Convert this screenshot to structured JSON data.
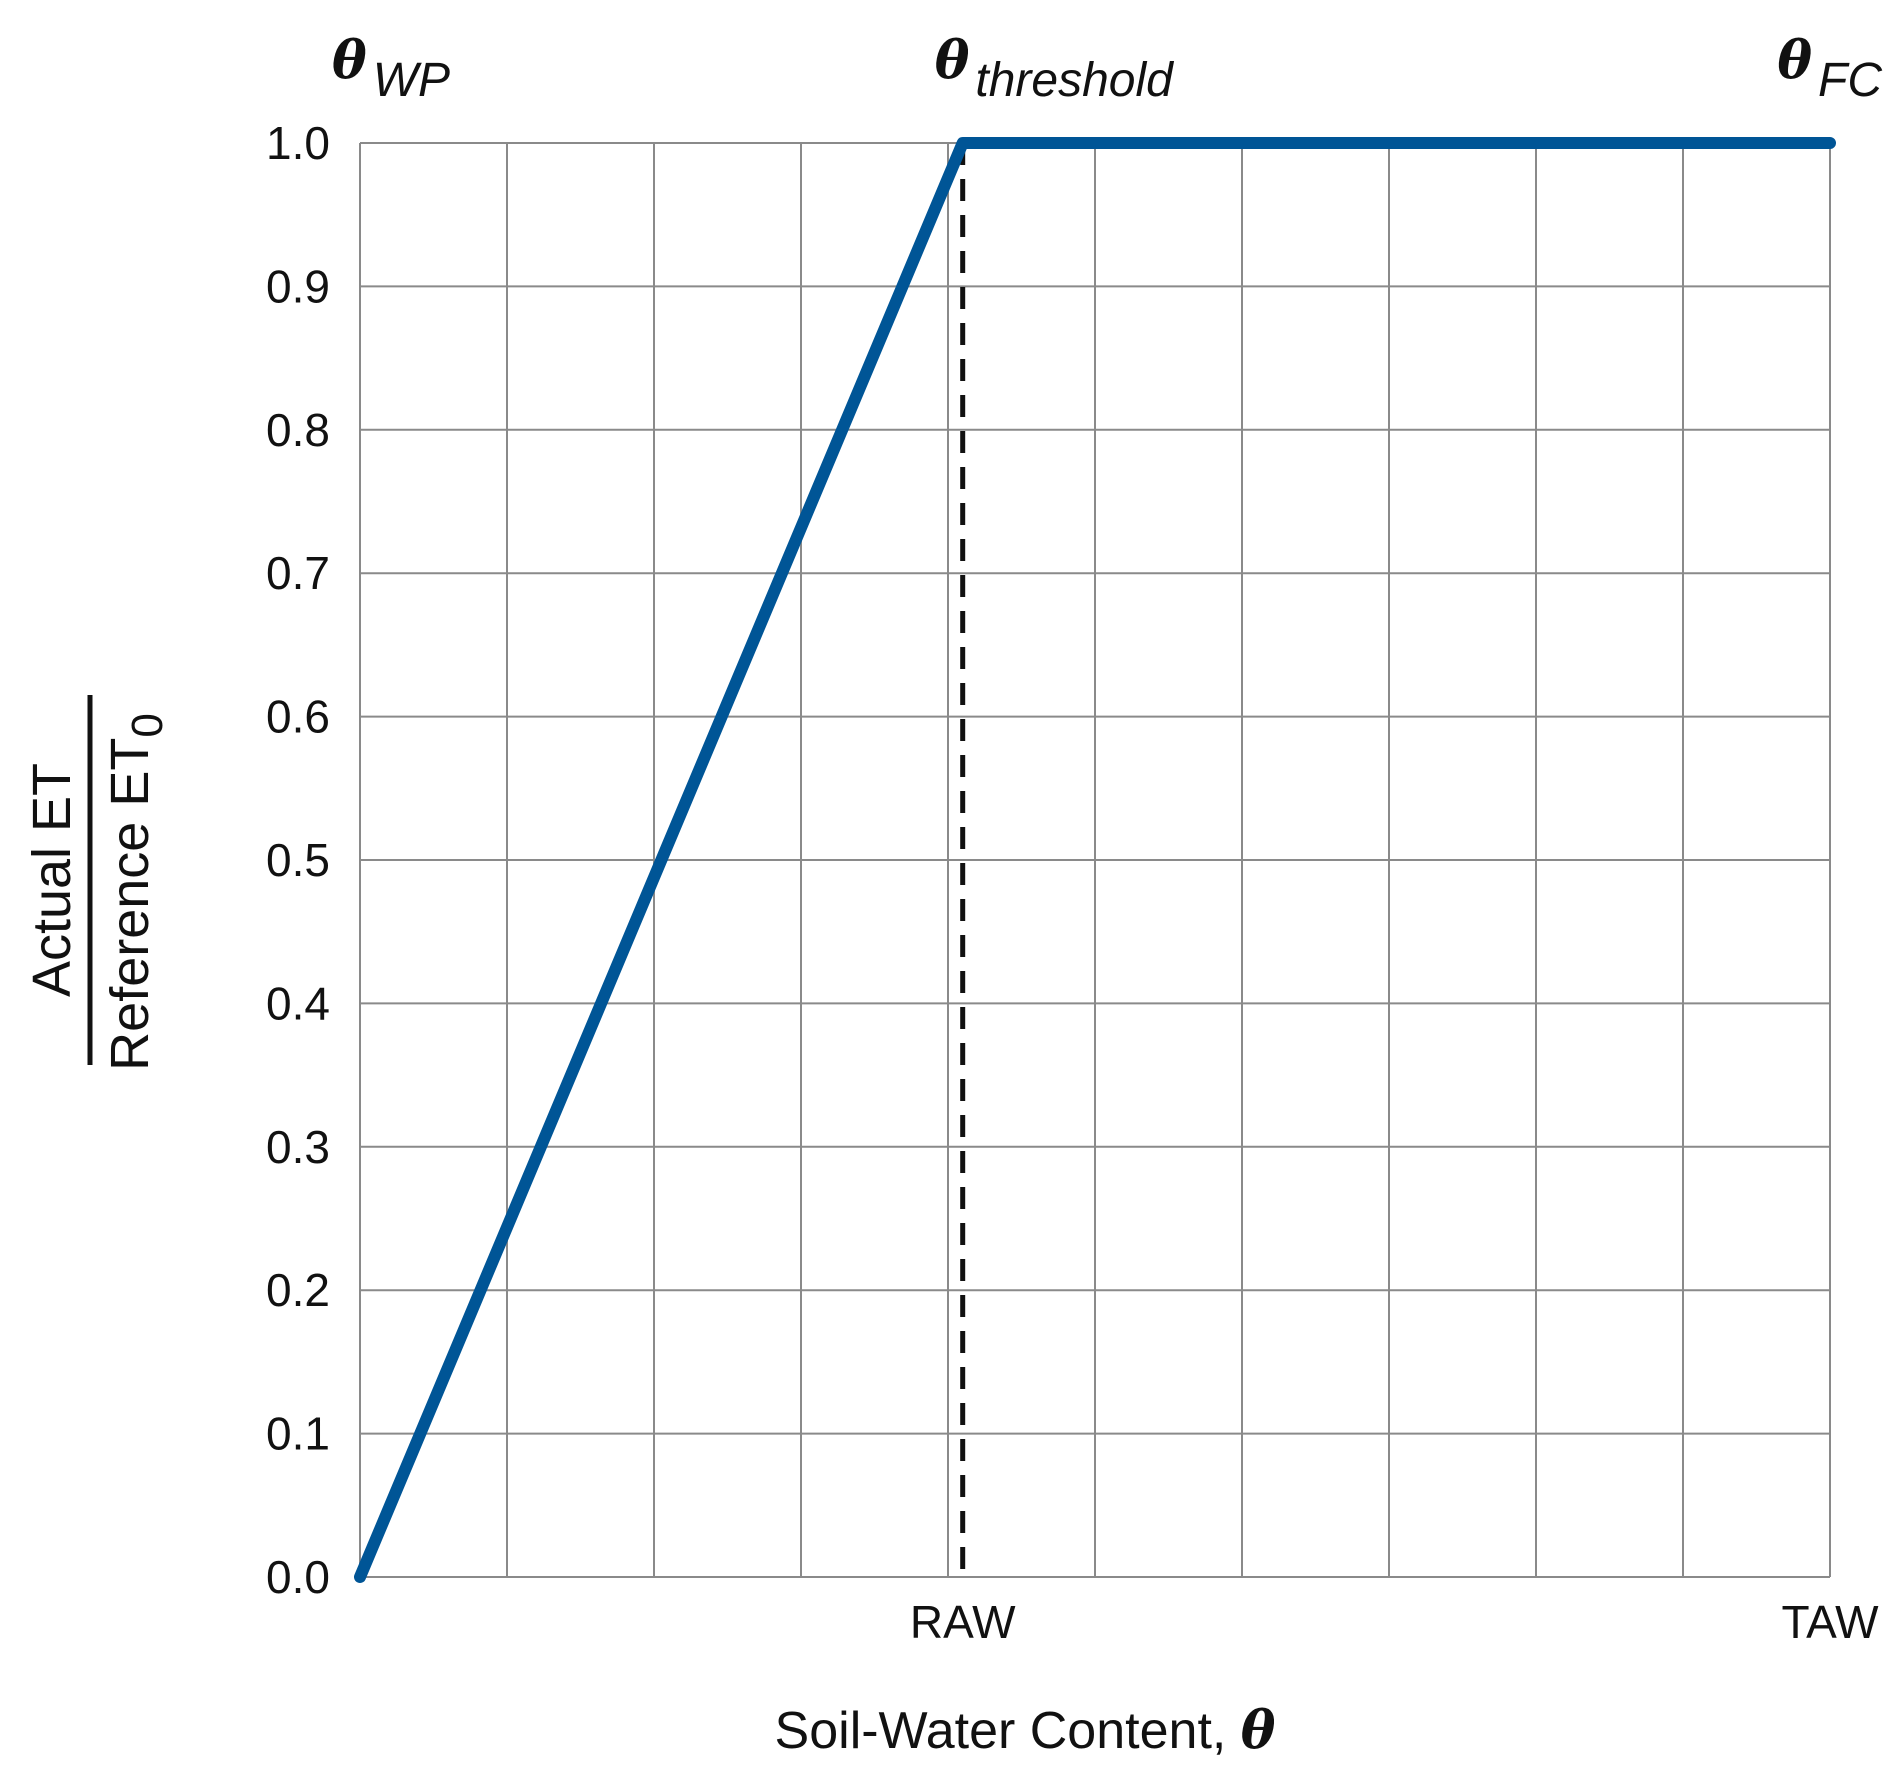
{
  "chart_data": {
    "type": "line",
    "xlabel": "Soil-Water Content, ",
    "xlabel_symbol": "θ",
    "ylabel": {
      "numerator": "Actual ET",
      "denominator": "Reference ET",
      "denominator_subscript": "0"
    },
    "ylim": [
      0,
      1.0
    ],
    "xlim": [
      0,
      10
    ],
    "y_ticks": [
      "0.0",
      "0.1",
      "0.2",
      "0.3",
      "0.4",
      "0.5",
      "0.6",
      "0.7",
      "0.8",
      "0.9",
      "1.0"
    ],
    "x_tick_labels": [
      {
        "x": 4.1,
        "label": "RAW"
      },
      {
        "x": 10,
        "label": "TAW"
      }
    ],
    "top_labels": [
      {
        "x": 0,
        "symbol": "θ",
        "subscript": "WP"
      },
      {
        "x": 4.1,
        "symbol": "θ",
        "subscript": "threshold"
      },
      {
        "x": 10,
        "symbol": "θ",
        "subscript": "FC"
      }
    ],
    "grid": true,
    "series": [
      {
        "color": "#005596",
        "points": [
          {
            "x": 0,
            "y": 0.0
          },
          {
            "x": 4.1,
            "y": 1.0
          },
          {
            "x": 10,
            "y": 1.0
          }
        ]
      }
    ],
    "reference_line": {
      "x": 4.1,
      "style": "dashed",
      "color": "#111111"
    }
  }
}
